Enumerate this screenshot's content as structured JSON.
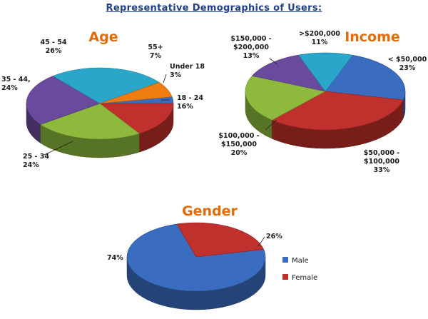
{
  "page_title": "Representative Demographics of Users:",
  "colors": {
    "title": "#e36c09",
    "heading": "#1f3f8a",
    "blue": "#3a6cc0",
    "red": "#c0302c",
    "green": "#8db93c",
    "purple": "#6a4a9c",
    "cyan": "#29a6c9",
    "orange": "#f07d12"
  },
  "chart_data": [
    {
      "type": "pie",
      "title": "Age",
      "slices": [
        {
          "name": "Under 18",
          "value": 3,
          "label": "3%",
          "color": "#3a6cc0"
        },
        {
          "name": "18 - 24",
          "value": 16,
          "label": "16%",
          "color": "#c0302c"
        },
        {
          "name": "25 - 34",
          "value": 24,
          "label": "24%",
          "color": "#8db93c"
        },
        {
          "name": "35 - 44,",
          "value": 24,
          "label": "24%",
          "color": "#6a4a9c"
        },
        {
          "name": "45 - 54",
          "value": 26,
          "label": "26%",
          "color": "#29a6c9"
        },
        {
          "name": "55+",
          "value": 7,
          "label": "7%",
          "color": "#f07d12"
        }
      ]
    },
    {
      "type": "pie",
      "title": "Income",
      "slices": [
        {
          "name": "< $50,000",
          "value": 23,
          "label": "23%",
          "color": "#3a6cc0"
        },
        {
          "name": "$50,000 - $100,000",
          "value": 33,
          "label": "33%",
          "color": "#c0302c"
        },
        {
          "name": "$100,000 - $150,000",
          "value": 20,
          "label": "20%",
          "color": "#8db93c"
        },
        {
          "name": "$150,000 - $200,000",
          "value": 13,
          "label": "13%",
          "color": "#6a4a9c"
        },
        {
          "name": ">$200,000",
          "value": 11,
          "label": "11%",
          "color": "#29a6c9"
        }
      ]
    },
    {
      "type": "pie",
      "title": "Gender",
      "legend_position": "right",
      "slices": [
        {
          "name": "Male",
          "value": 74,
          "label": "74%",
          "color": "#3a6cc0"
        },
        {
          "name": "Female",
          "value": 26,
          "label": "26%",
          "color": "#c0302c"
        }
      ]
    }
  ]
}
